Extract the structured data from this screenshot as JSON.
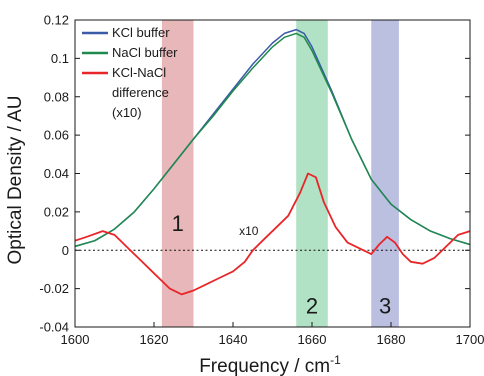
{
  "chart_data": {
    "type": "line",
    "xlabel": "Frequency / cm",
    "xlabel_sup": "-1",
    "ylabel": "Optical Density / AU",
    "xlim": [
      1600,
      1700
    ],
    "ylim": [
      -0.04,
      0.12
    ],
    "xticks": [
      "1600",
      "1620",
      "1640",
      "1660",
      "1680",
      "1700"
    ],
    "yticks": [
      "-0.04",
      "-0.02",
      "0",
      "0.02",
      "0.04",
      "0.06",
      "0.08",
      "0.1",
      "0.12"
    ],
    "grid": false,
    "legend_position": "top-left",
    "zero_line": "dashed",
    "series": [
      {
        "name": "KCl buffer",
        "color": "#3b5ba9",
        "x": [
          1600,
          1605,
          1610,
          1615,
          1620,
          1625,
          1630,
          1635,
          1640,
          1645,
          1650,
          1653,
          1656,
          1658,
          1660,
          1665,
          1670,
          1675,
          1680,
          1685,
          1690,
          1695,
          1700
        ],
        "y": [
          0.002,
          0.005,
          0.011,
          0.02,
          0.032,
          0.045,
          0.058,
          0.071,
          0.084,
          0.097,
          0.108,
          0.113,
          0.115,
          0.113,
          0.106,
          0.083,
          0.058,
          0.037,
          0.024,
          0.016,
          0.01,
          0.006,
          0.003
        ]
      },
      {
        "name": "NaCl buffer",
        "color": "#1f8a4c",
        "x": [
          1600,
          1605,
          1610,
          1615,
          1620,
          1625,
          1630,
          1635,
          1640,
          1645,
          1650,
          1653,
          1656,
          1658,
          1660,
          1665,
          1670,
          1675,
          1680,
          1685,
          1690,
          1695,
          1700
        ],
        "y": [
          0.002,
          0.005,
          0.011,
          0.02,
          0.032,
          0.045,
          0.058,
          0.07,
          0.083,
          0.095,
          0.106,
          0.111,
          0.113,
          0.111,
          0.104,
          0.082,
          0.058,
          0.037,
          0.024,
          0.016,
          0.01,
          0.006,
          0.003
        ]
      },
      {
        "name": "KCl-NaCl difference (x10)",
        "color": "#e8262a",
        "x": [
          1600,
          1603,
          1607,
          1610,
          1613,
          1616,
          1620,
          1624,
          1627,
          1630,
          1633,
          1636,
          1640,
          1643,
          1645,
          1648,
          1651,
          1654,
          1657,
          1659,
          1661,
          1663,
          1666,
          1669,
          1672,
          1675,
          1677,
          1679,
          1681,
          1683,
          1685,
          1688,
          1691,
          1694,
          1697,
          1700
        ],
        "y": [
          0.005,
          0.007,
          0.01,
          0.008,
          0.002,
          -0.004,
          -0.012,
          -0.02,
          -0.023,
          -0.021,
          -0.018,
          -0.015,
          -0.011,
          -0.006,
          0.0,
          0.006,
          0.012,
          0.018,
          0.03,
          0.04,
          0.038,
          0.025,
          0.012,
          0.004,
          0.001,
          -0.002,
          0.003,
          0.007,
          0.004,
          -0.002,
          -0.006,
          -0.007,
          -0.004,
          0.002,
          0.008,
          0.01
        ]
      }
    ],
    "bands": [
      {
        "label": "1",
        "x_range": [
          1622,
          1630
        ],
        "color": "#d9878c"
      },
      {
        "label": "2",
        "x_range": [
          1656,
          1664
        ],
        "color": "#7fcf9f"
      },
      {
        "label": "3",
        "x_range": [
          1675,
          1682
        ],
        "color": "#8d95cc"
      }
    ],
    "legend": [
      {
        "text": "KCl buffer",
        "color": "#3b5ba9"
      },
      {
        "text": "NaCl buffer",
        "color": "#1f8a4c"
      },
      {
        "text": "KCl-NaCl",
        "color": "#e8262a"
      },
      {
        "text": "difference",
        "color": null
      },
      {
        "text": "(x10)",
        "color": null
      }
    ],
    "annotation": {
      "text": "x10",
      "x": 1644,
      "y": 0.008
    }
  }
}
